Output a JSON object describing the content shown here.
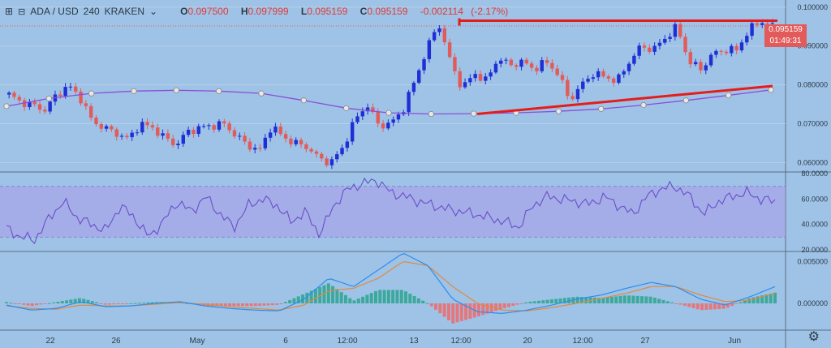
{
  "header": {
    "symbol": "ADA / USD",
    "interval": "240",
    "exchange": "KRAKEN",
    "open_label": "O",
    "open": "0.097500",
    "high_label": "H",
    "high": "0.097999",
    "low_label": "L",
    "low": "0.095159",
    "close_label": "C",
    "close": "0.095159",
    "change": "-0.002114",
    "change_pct": "(-2.17%)"
  },
  "price_axis": {
    "last_price": "0.095159",
    "countdown": "01:49:31",
    "ticks": [
      "0.100000",
      "0.090000",
      "0.080000",
      "0.070000",
      "0.060000"
    ]
  },
  "rsi_axis": {
    "ticks": [
      "80.0000",
      "60.0000",
      "40.0000",
      "20.0000"
    ]
  },
  "macd_axis": {
    "ticks": [
      "0.005000",
      "0.000000"
    ]
  },
  "x_axis": {
    "labels": [
      "22",
      "26",
      "May",
      "6",
      "12:00",
      "13",
      "12:00",
      "20",
      "12:00",
      "27",
      "Jun"
    ]
  },
  "colors": {
    "background": "#9fc3e6",
    "bull": "#1f2fd6",
    "bear": "#e25b5b",
    "ma": "#8a4fd8",
    "trendline": "#e51c1c",
    "rsi_line": "#6a4fc9",
    "rsi_band": "#a79bea",
    "macd": "#2d8cf0",
    "signal": "#e08a3c",
    "hist_pos": "#2aa58e",
    "hist_neg": "#f06a6a"
  },
  "chart_data": [
    {
      "type": "candlestick",
      "name": "ADA / USD 240",
      "ylim": [
        0.058,
        0.101
      ],
      "x": [
        "22",
        "26",
        "May",
        "6",
        "12:00",
        "13",
        "12:00",
        "20",
        "12:00",
        "27",
        "Jun"
      ],
      "close_path": [
        0.0775,
        0.0755,
        0.0748,
        0.0735,
        0.0775,
        0.0798,
        0.0765,
        0.0705,
        0.069,
        0.0675,
        0.066,
        0.07,
        0.069,
        0.0665,
        0.0645,
        0.068,
        0.069,
        0.0695,
        0.07,
        0.067,
        0.0645,
        0.063,
        0.0695,
        0.0665,
        0.065,
        0.064,
        0.061,
        0.06,
        0.064,
        0.071,
        0.075,
        0.0695,
        0.07,
        0.0735,
        0.081,
        0.089,
        0.096,
        0.086,
        0.079,
        0.083,
        0.081,
        0.087,
        0.085,
        0.086,
        0.084,
        0.086,
        0.083,
        0.076,
        0.08,
        0.083,
        0.082,
        0.081,
        0.086,
        0.09,
        0.089,
        0.092,
        0.095,
        0.086,
        0.084,
        0.088,
        0.089,
        0.089,
        0.094,
        0.0965,
        0.0952
      ],
      "moving_average": [
        0.0745,
        0.0765,
        0.0778,
        0.0784,
        0.0786,
        0.0784,
        0.0778,
        0.076,
        0.074,
        0.0728,
        0.0725,
        0.0726,
        0.0728,
        0.0732,
        0.0738,
        0.0748,
        0.076,
        0.0773,
        0.0787
      ],
      "trendlines": [
        {
          "name": "resistance",
          "from": [
            0.0965,
            0.0965
          ],
          "value": 0.0965
        },
        {
          "name": "support",
          "from_value": 0.0725,
          "to_value": 0.0797
        }
      ],
      "last_price": 0.095159
    },
    {
      "type": "line",
      "name": "RSI",
      "ylim": [
        20,
        80
      ],
      "band": [
        30,
        70
      ],
      "values": [
        37,
        30,
        28,
        45,
        58,
        45,
        40,
        35,
        55,
        45,
        30,
        42,
        58,
        50,
        62,
        48,
        38,
        55,
        60,
        55,
        42,
        50,
        32,
        55,
        68,
        72,
        75,
        65,
        62,
        58,
        55,
        52,
        50,
        48,
        45,
        42,
        38,
        55,
        62,
        60,
        58,
        56,
        62,
        55,
        48,
        62,
        68,
        70,
        62,
        48,
        58,
        62,
        65,
        60,
        58
      ]
    },
    {
      "type": "line+bar",
      "name": "MACD",
      "ylim": [
        -0.003,
        0.006
      ],
      "macd": [
        -0.0002,
        -0.0008,
        -0.0006,
        0.0002,
        -0.0004,
        -0.0003,
        0.0,
        0.0002,
        -0.0003,
        -0.0006,
        -0.0008,
        -0.0009,
        0.0005,
        0.003,
        0.002,
        0.004,
        0.006,
        0.0045,
        0.0005,
        -0.001,
        -0.0012,
        -0.0008,
        -0.0002,
        0.0005,
        0.001,
        0.0018,
        0.0025,
        0.002,
        0.0005,
        -0.0002,
        0.0008,
        0.002
      ],
      "signal": [
        -0.0003,
        -0.0006,
        -0.0007,
        -0.0002,
        -0.0003,
        -0.0003,
        -0.0001,
        0.0001,
        -0.0001,
        -0.0004,
        -0.0006,
        -0.0008,
        -0.0002,
        0.0015,
        0.0018,
        0.003,
        0.005,
        0.0045,
        0.002,
        0.0,
        -0.0008,
        -0.0009,
        -0.0005,
        0.0,
        0.0006,
        0.0012,
        0.002,
        0.002,
        0.001,
        0.0002,
        0.0004,
        0.0012
      ]
    }
  ]
}
